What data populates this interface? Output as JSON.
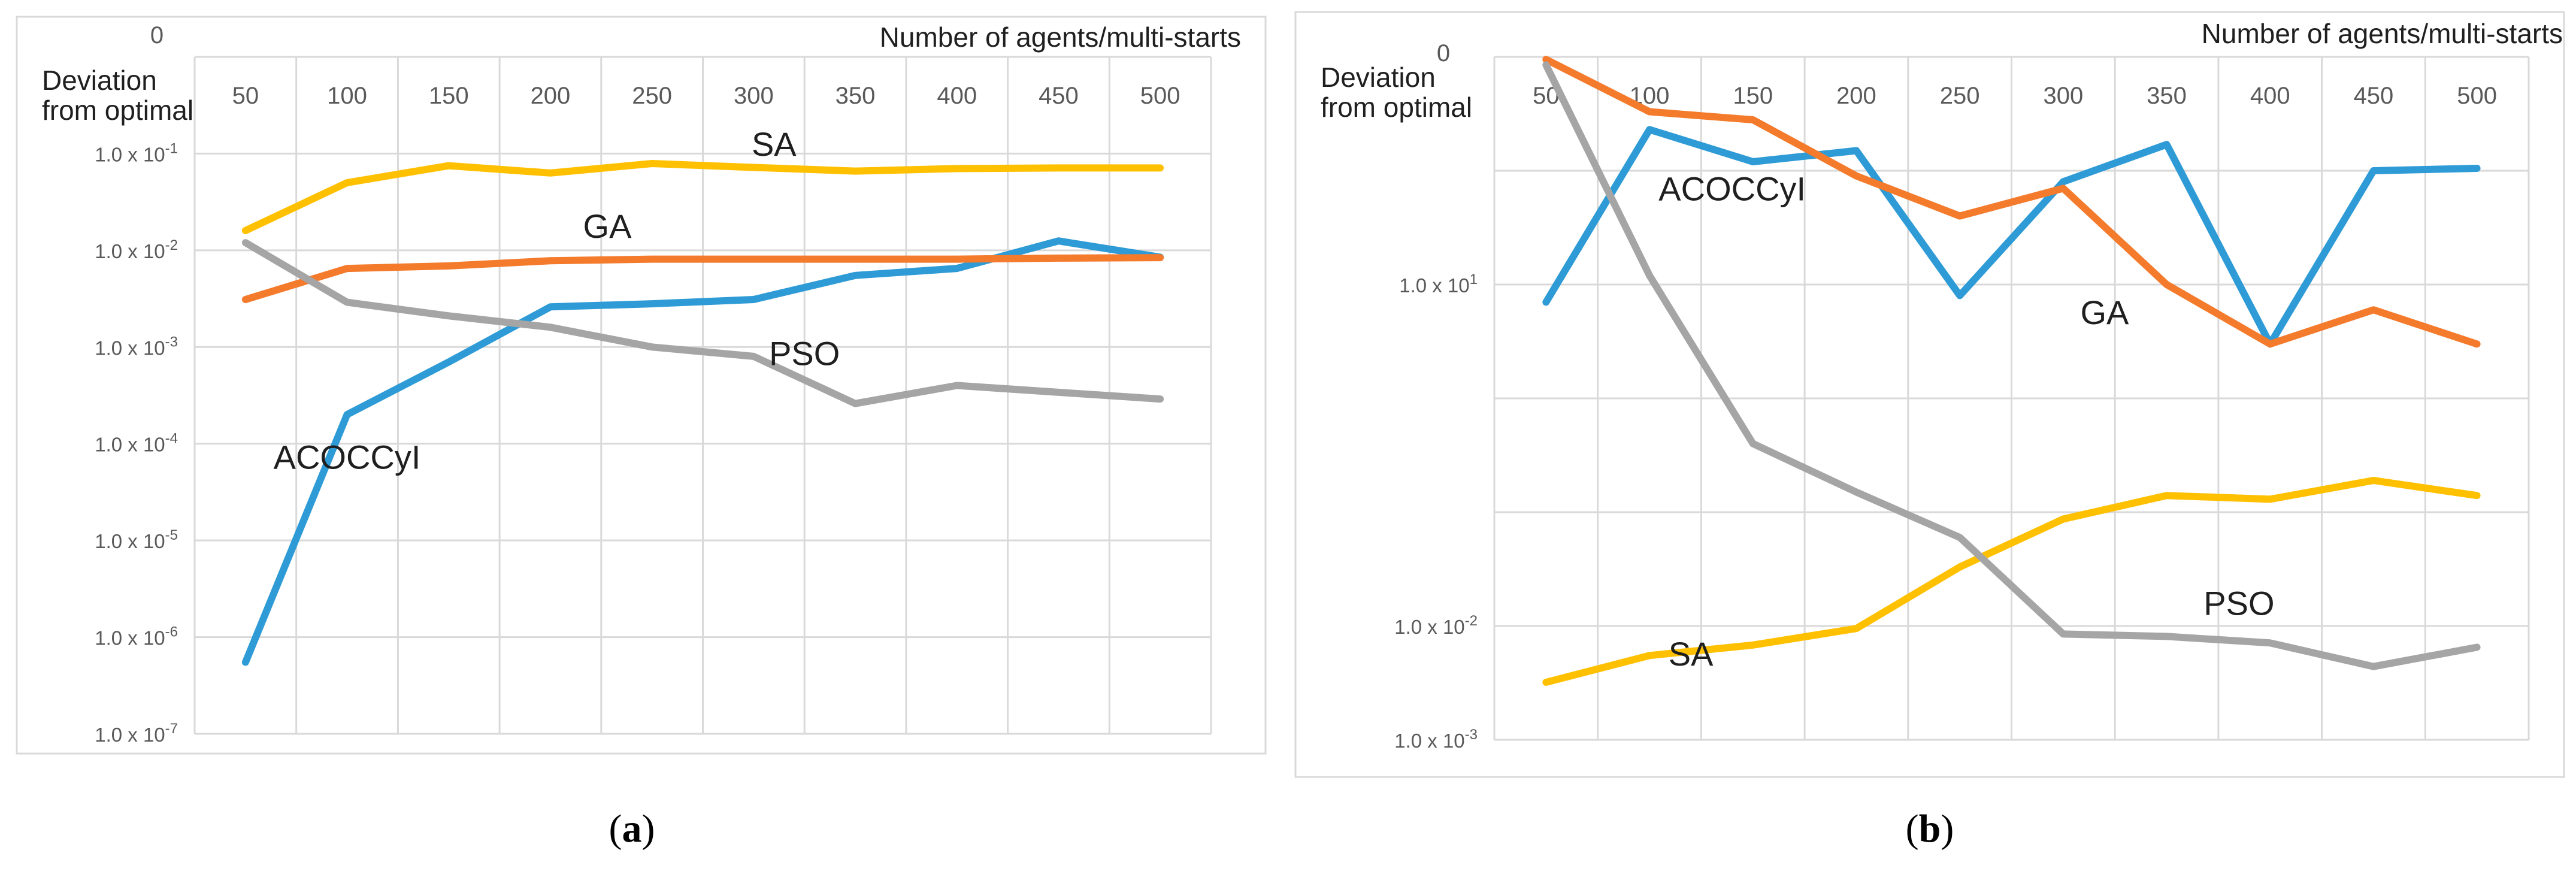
{
  "chart_data": [
    {
      "type": "line",
      "panel_label": "a",
      "xlabel": "Number of agents/multi-starts",
      "ylabel": "Deviation from optimal",
      "ylabel_lines": [
        "Deviation",
        "from optimal"
      ],
      "yscale": "log",
      "ylim": [
        1e-07,
        1
      ],
      "ytick_top_label": "0",
      "ytick_base": "1.0 x 10",
      "yticks": [
        {
          "value": 0.1,
          "exp": "-1"
        },
        {
          "value": 0.01,
          "exp": "-2"
        },
        {
          "value": 0.001,
          "exp": "-3"
        },
        {
          "value": 0.0001,
          "exp": "-4"
        },
        {
          "value": 1e-05,
          "exp": "-5"
        },
        {
          "value": 1e-06,
          "exp": "-6"
        },
        {
          "value": 1e-07,
          "exp": "-7"
        }
      ],
      "categories": [
        "50",
        "100",
        "150",
        "200",
        "250",
        "300",
        "350",
        "400",
        "450",
        "500"
      ],
      "x": [
        50,
        100,
        150,
        200,
        250,
        300,
        350,
        400,
        450,
        500
      ],
      "series": [
        {
          "name": "ACOCCyI",
          "color": "#2E9BD6",
          "values": [
            5.5e-07,
            0.0002,
            0.0007,
            0.0026,
            0.0028,
            0.0031,
            0.0055,
            0.0065,
            0.0125,
            0.0085
          ]
        },
        {
          "name": "GA",
          "color": "#F47A2C",
          "values": [
            0.0031,
            0.0065,
            0.0069,
            0.0078,
            0.0081,
            0.0081,
            0.0081,
            0.0081,
            0.0083,
            0.0084
          ]
        },
        {
          "name": "SA",
          "color": "#FFC000",
          "values": [
            0.016,
            0.05,
            0.075,
            0.063,
            0.079,
            0.072,
            0.066,
            0.07,
            0.071,
            0.071
          ]
        },
        {
          "name": "PSO",
          "color": "#A5A5A5",
          "values": [
            0.012,
            0.0029,
            0.0021,
            0.0016,
            0.001,
            0.0008,
            0.00026,
            0.0004,
            0.00034,
            0.00029
          ]
        }
      ],
      "annotations": [
        {
          "text": "SA",
          "x": 310,
          "y": 0.095
        },
        {
          "text": "GA",
          "x": 228,
          "y": 0.0135
        },
        {
          "text": "PSO",
          "x": 325,
          "y": 0.00065
        },
        {
          "text": "ACOCCyI",
          "x": 100,
          "y": 5.5e-05
        }
      ]
    },
    {
      "type": "line",
      "panel_label": "b",
      "xlabel": "Number of agents/multi-starts",
      "ylabel": "Deviation from optimal",
      "ylabel_lines": [
        "Deviation",
        "from optimal"
      ],
      "yscale": "log",
      "ylim": [
        0.001,
        1000
      ],
      "ytick_top_label": "0",
      "ytick_base": "1.0 x 10",
      "yticks": [
        {
          "value": 10,
          "exp": "1"
        },
        {
          "value": 0.01,
          "exp": "-2"
        },
        {
          "value": 0.001,
          "exp": "-3"
        }
      ],
      "categories": [
        "50",
        "100",
        "150",
        "200",
        "250",
        "300",
        "350",
        "400",
        "450",
        "500"
      ],
      "x": [
        50,
        100,
        150,
        200,
        250,
        300,
        350,
        400,
        450,
        500
      ],
      "series": [
        {
          "name": "ACOCCyI",
          "color": "#2E9BD6",
          "values": [
            7,
            230,
            120,
            150,
            8,
            80,
            170,
            3,
            100,
            105
          ]
        },
        {
          "name": "GA",
          "color": "#F47A2C",
          "values": [
            950,
            330,
            280,
            90,
            40,
            70,
            10,
            3,
            6,
            3
          ]
        },
        {
          "name": "SA",
          "color": "#FFC000",
          "values": [
            0.0032,
            0.0055,
            0.0068,
            0.0095,
            0.033,
            0.087,
            0.14,
            0.13,
            0.19,
            0.14
          ]
        },
        {
          "name": "PSO",
          "color": "#A5A5A5",
          "values": [
            850,
            12,
            0.4,
            0.15,
            0.06,
            0.0085,
            0.0081,
            0.0071,
            0.0044,
            0.0065
          ]
        }
      ],
      "annotations": [
        {
          "text": "ACOCCyI",
          "x": 140,
          "y": 55
        },
        {
          "text": "GA",
          "x": 320,
          "y": 4.5
        },
        {
          "text": "PSO",
          "x": 385,
          "y": 0.0125
        },
        {
          "text": "SA",
          "x": 120,
          "y": 0.0045
        }
      ]
    }
  ]
}
